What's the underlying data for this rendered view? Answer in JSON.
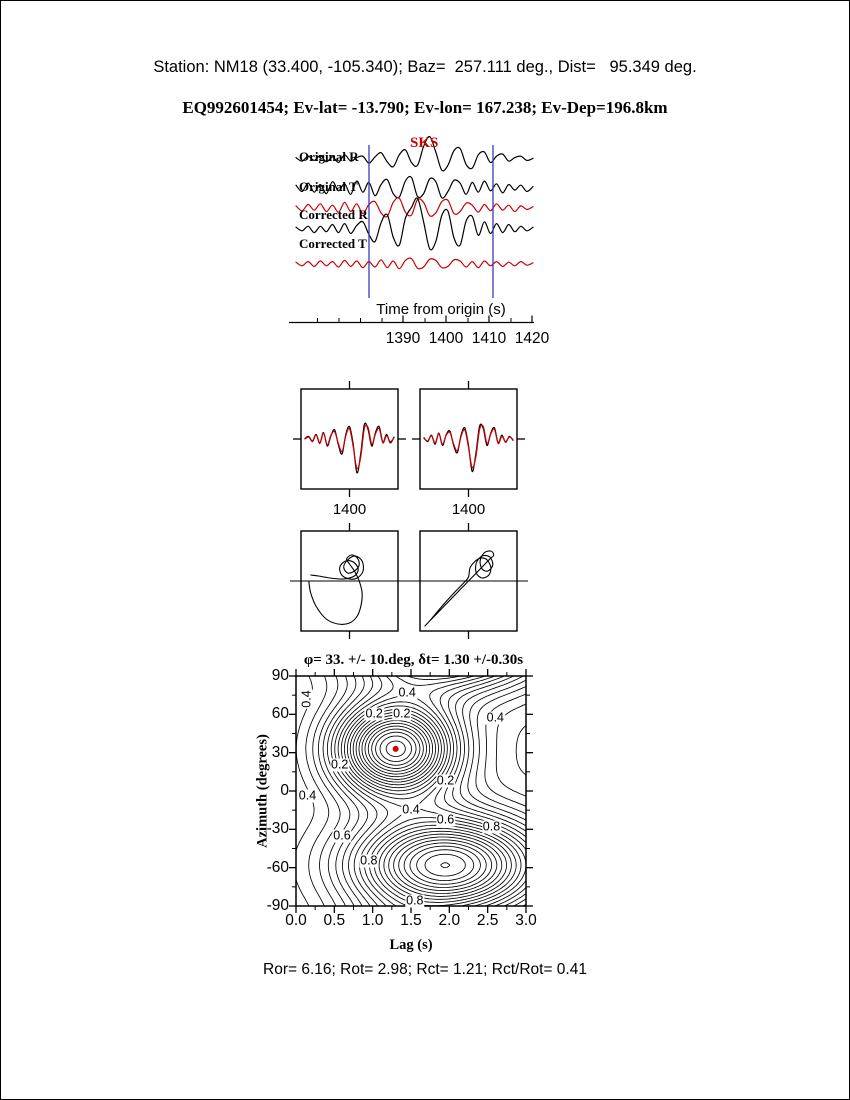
{
  "header": {
    "line1": "Station: NM18 (33.400, -105.340); Baz=  257.111 deg., Dist=   95.349 deg.",
    "line2": "EQ992601454; Ev-lat= -13.790; Ev-lon= 167.238; Ev-Dep=196.8km"
  },
  "seismogram": {
    "phase_label": "SKS",
    "trace_labels": [
      "Original R",
      "Original T",
      "Corrected R",
      "Corrected T"
    ],
    "xlabel": "Time from origin (s)",
    "xticks": [
      "1390",
      "1400",
      "1410",
      "1420"
    ]
  },
  "waveform_windows": {
    "tick_labels": [
      "1400",
      "1400"
    ]
  },
  "result_line": "Ror= 6.16; Rot= 2.98; Rct= 1.21; Rct/Rot= 0.41",
  "colors": {
    "trace_black": "#000000",
    "trace_red": "#cc0000",
    "window_line": "#3a3ac0",
    "best_dot": "#cc0000"
  },
  "chart_data": [
    {
      "type": "line",
      "name": "seismogram-traces",
      "xlabel": "Time from origin (s)",
      "xticks": [
        1390,
        1400,
        1410,
        1420
      ],
      "window_times": [
        1382,
        1411
      ],
      "series": [
        {
          "name": "trace-1",
          "label": "Original R",
          "color": "black",
          "values": [
            0.2,
            -0.3,
            0.4,
            -0.2,
            0.5,
            -0.4,
            0.3,
            -0.5,
            0.6,
            -0.3,
            0.2,
            0.4,
            -0.6,
            0.3,
            0.9,
            -0.4,
            -1.1,
            0.6,
            1.3,
            -0.5,
            -0.9,
            1.8,
            3.2,
            1.0,
            -1.6,
            -0.9,
            1.2,
            1.5,
            -0.8,
            -1.3,
            0.6,
            1.0,
            -0.5,
            0.4,
            0.7,
            -0.3,
            0.2,
            0.4,
            -0.2,
            0.1
          ]
        },
        {
          "name": "trace-2",
          "label": "Original T",
          "color": "black",
          "values": [
            0.4,
            -0.5,
            0.7,
            -0.6,
            0.5,
            -0.8,
            0.9,
            -0.4,
            0.6,
            -0.9,
            1.0,
            -0.6,
            0.8,
            -1.1,
            0.5,
            1.2,
            -0.8,
            -1.3,
            1.0,
            1.5,
            -1.2,
            -0.8,
            1.3,
            0.9,
            -1.4,
            -0.5,
            1.1,
            0.7,
            -0.9,
            0.8,
            -0.6,
            1.0,
            -0.4,
            0.6,
            -0.7,
            0.5,
            -0.3,
            0.4,
            -0.5,
            0.2
          ]
        },
        {
          "name": "trace-3",
          "label": "",
          "color": "red",
          "values": [
            0.3,
            -0.4,
            0.5,
            -0.3,
            0.6,
            -0.5,
            0.4,
            -0.6,
            0.8,
            -0.5,
            0.6,
            -0.8,
            0.5,
            0.9,
            -0.7,
            -1.2,
            0.8,
            1.4,
            -0.6,
            -1.0,
            1.2,
            0.8,
            -1.1,
            -0.7,
            0.9,
            1.1,
            -0.8,
            -0.5,
            0.7,
            0.4,
            -0.6,
            0.5,
            -0.4,
            0.6,
            -0.3,
            0.4,
            -0.5,
            0.3,
            -0.2,
            0.2
          ]
        },
        {
          "name": "trace-4",
          "label": "Corrected R",
          "color": "black",
          "values": [
            0.2,
            -0.2,
            0.3,
            -0.4,
            0.3,
            -0.3,
            0.5,
            -0.4,
            0.6,
            -0.5,
            0.4,
            0.8,
            -0.6,
            -1.4,
            0.7,
            1.6,
            -0.9,
            -1.8,
            1.2,
            2.4,
            3.4,
            0.8,
            -2.2,
            -1.4,
            1.5,
            2.0,
            -1.0,
            -1.8,
            0.9,
            1.4,
            -0.7,
            0.8,
            -0.5,
            0.6,
            -0.4,
            0.5,
            -0.3,
            0.3,
            -0.2,
            0.2
          ]
        },
        {
          "name": "trace-5",
          "label": "Corrected T",
          "color": "red",
          "values": [
            0.3,
            -0.3,
            0.4,
            -0.4,
            0.5,
            -0.3,
            0.4,
            -0.5,
            0.6,
            -0.4,
            0.5,
            -0.6,
            0.4,
            -0.5,
            0.7,
            -0.6,
            0.5,
            -0.8,
            0.6,
            0.9,
            -0.7,
            -0.5,
            0.8,
            0.6,
            -0.6,
            -0.4,
            0.7,
            0.5,
            -0.5,
            0.4,
            -0.6,
            0.5,
            -0.3,
            0.4,
            -0.4,
            0.3,
            -0.3,
            0.4,
            -0.2,
            0.2
          ]
        }
      ]
    },
    {
      "type": "line",
      "name": "corrected-waveform-comparison",
      "panels": [
        {
          "xtick": "1400",
          "series": [
            {
              "color": "black",
              "values": [
                0.05,
                0.2,
                -0.15,
                0.35,
                -0.3,
                0.5,
                -0.55,
                0.25,
                0.7,
                -0.45,
                -1.15,
                0.35,
                0.95,
                -0.4,
                -2.6,
                -1.2,
                1.1,
                0.75,
                -0.55,
                0.5,
                0.95,
                -0.25,
                0.35,
                -0.3,
                0.15
              ]
            },
            {
              "color": "red",
              "values": [
                0.0,
                0.15,
                -0.2,
                0.3,
                -0.35,
                0.45,
                -0.45,
                0.3,
                0.55,
                -0.35,
                -0.95,
                0.25,
                0.8,
                -0.6,
                -2.25,
                -1.45,
                0.8,
                0.9,
                -0.4,
                0.4,
                0.8,
                -0.3,
                0.25,
                -0.2,
                0.1
              ]
            }
          ]
        },
        {
          "xtick": "1400",
          "series": [
            {
              "color": "black",
              "values": [
                0.1,
                -0.2,
                0.3,
                -0.4,
                0.45,
                -0.5,
                0.35,
                0.6,
                -0.5,
                -1.05,
                0.3,
                0.85,
                -0.5,
                -2.5,
                -1.1,
                1.0,
                0.8,
                -0.5,
                0.45,
                0.85,
                -0.3,
                0.3,
                -0.25,
                0.2,
                -0.1
              ]
            },
            {
              "color": "red",
              "values": [
                0.05,
                -0.15,
                0.25,
                -0.3,
                0.4,
                -0.4,
                0.3,
                0.5,
                -0.4,
                -0.9,
                0.2,
                0.7,
                -0.65,
                -2.2,
                -1.35,
                0.75,
                0.95,
                -0.35,
                0.4,
                0.75,
                -0.35,
                0.2,
                -0.2,
                0.15,
                -0.05
              ]
            }
          ]
        }
      ]
    },
    {
      "type": "scatter",
      "name": "particle-motion",
      "panels": [
        {
          "points": [
            [
              0.08,
              0.5
            ],
            [
              0.1,
              0.62
            ],
            [
              0.16,
              0.76
            ],
            [
              0.26,
              0.88
            ],
            [
              0.38,
              0.93
            ],
            [
              0.5,
              0.92
            ],
            [
              0.58,
              0.85
            ],
            [
              0.62,
              0.74
            ],
            [
              0.63,
              0.62
            ],
            [
              0.6,
              0.5
            ],
            [
              0.55,
              0.4
            ],
            [
              0.5,
              0.33
            ],
            [
              0.47,
              0.28
            ],
            [
              0.52,
              0.24
            ],
            [
              0.58,
              0.27
            ],
            [
              0.6,
              0.34
            ],
            [
              0.55,
              0.4
            ],
            [
              0.48,
              0.42
            ],
            [
              0.44,
              0.36
            ],
            [
              0.48,
              0.29
            ],
            [
              0.56,
              0.25
            ],
            [
              0.63,
              0.3
            ],
            [
              0.64,
              0.4
            ],
            [
              0.58,
              0.47
            ],
            [
              0.5,
              0.48
            ],
            [
              0.42,
              0.44
            ],
            [
              0.4,
              0.36
            ],
            [
              0.46,
              0.3
            ],
            [
              0.54,
              0.31
            ],
            [
              0.59,
              0.38
            ],
            [
              0.55,
              0.45
            ],
            [
              0.44,
              0.48
            ],
            [
              0.3,
              0.47
            ],
            [
              0.18,
              0.45
            ],
            [
              0.1,
              0.44
            ]
          ]
        },
        {
          "points": [
            [
              0.05,
              0.95
            ],
            [
              0.15,
              0.85
            ],
            [
              0.28,
              0.72
            ],
            [
              0.42,
              0.58
            ],
            [
              0.55,
              0.45
            ],
            [
              0.65,
              0.35
            ],
            [
              0.72,
              0.28
            ],
            [
              0.76,
              0.24
            ],
            [
              0.73,
              0.2
            ],
            [
              0.66,
              0.22
            ],
            [
              0.62,
              0.3
            ],
            [
              0.64,
              0.38
            ],
            [
              0.7,
              0.4
            ],
            [
              0.75,
              0.34
            ],
            [
              0.72,
              0.26
            ],
            [
              0.64,
              0.25
            ],
            [
              0.58,
              0.32
            ],
            [
              0.58,
              0.42
            ],
            [
              0.64,
              0.47
            ],
            [
              0.71,
              0.44
            ],
            [
              0.73,
              0.36
            ],
            [
              0.68,
              0.28
            ],
            [
              0.6,
              0.28
            ],
            [
              0.52,
              0.36
            ],
            [
              0.5,
              0.46
            ],
            [
              0.45,
              0.52
            ],
            [
              0.35,
              0.62
            ],
            [
              0.22,
              0.76
            ],
            [
              0.1,
              0.9
            ]
          ]
        }
      ]
    },
    {
      "type": "heatmap",
      "name": "splitting-error-surface",
      "title": "φ= 33. +/- 10.deg, δt= 1.30 +/-0.30s",
      "xlabel": "Lag (s)",
      "ylabel": "Azimuth (degrees)",
      "xlim": [
        0,
        3
      ],
      "ylim": [
        -90,
        90
      ],
      "xticks": [
        "0.0",
        "0.5",
        "1.0",
        "1.5",
        "2.0",
        "2.5",
        "3.0"
      ],
      "yticks": [
        "90",
        "60",
        "30",
        "0",
        "-30",
        "-60",
        "-90"
      ],
      "best_solution": {
        "phi_deg": 33,
        "phi_err_deg": 10,
        "dt_s": 1.3,
        "dt_err_s": 0.3
      },
      "minima": [
        {
          "lag": 1.3,
          "az": 33,
          "sx": 0.55,
          "sy": 26,
          "depth": 0.96
        },
        {
          "lag": 1.95,
          "az": -58,
          "sx": 0.85,
          "sy": 27,
          "depth": 0.9
        }
      ],
      "contour_min": 0.06,
      "contour_max": 0.98,
      "contour_step": 0.04,
      "contour_labels": [
        {
          "text": "0.4",
          "lag": 1.45,
          "az": 77,
          "rot": false
        },
        {
          "text": "0.4",
          "lag": 0.14,
          "az": 72,
          "rot": true
        },
        {
          "text": "0.2",
          "lag": 1.02,
          "az": 60,
          "rot": false
        },
        {
          "text": "0.2",
          "lag": 1.38,
          "az": 60,
          "rot": false
        },
        {
          "text": "0.4",
          "lag": 2.6,
          "az": 57,
          "rot": false
        },
        {
          "text": "0.2",
          "lag": 0.57,
          "az": 20,
          "rot": false
        },
        {
          "text": "0.2",
          "lag": 1.95,
          "az": 8,
          "rot": false
        },
        {
          "text": "0.4",
          "lag": 0.15,
          "az": -4,
          "rot": false
        },
        {
          "text": "0.4",
          "lag": 1.5,
          "az": -15,
          "rot": false
        },
        {
          "text": "0.6",
          "lag": 1.95,
          "az": -23,
          "rot": false
        },
        {
          "text": "0.8",
          "lag": 2.55,
          "az": -28,
          "rot": false
        },
        {
          "text": "0.6",
          "lag": 0.6,
          "az": -35,
          "rot": false
        },
        {
          "text": "0.8",
          "lag": 0.95,
          "az": -55,
          "rot": false
        },
        {
          "text": "0.8",
          "lag": 1.55,
          "az": -86,
          "rot": false
        }
      ]
    }
  ]
}
